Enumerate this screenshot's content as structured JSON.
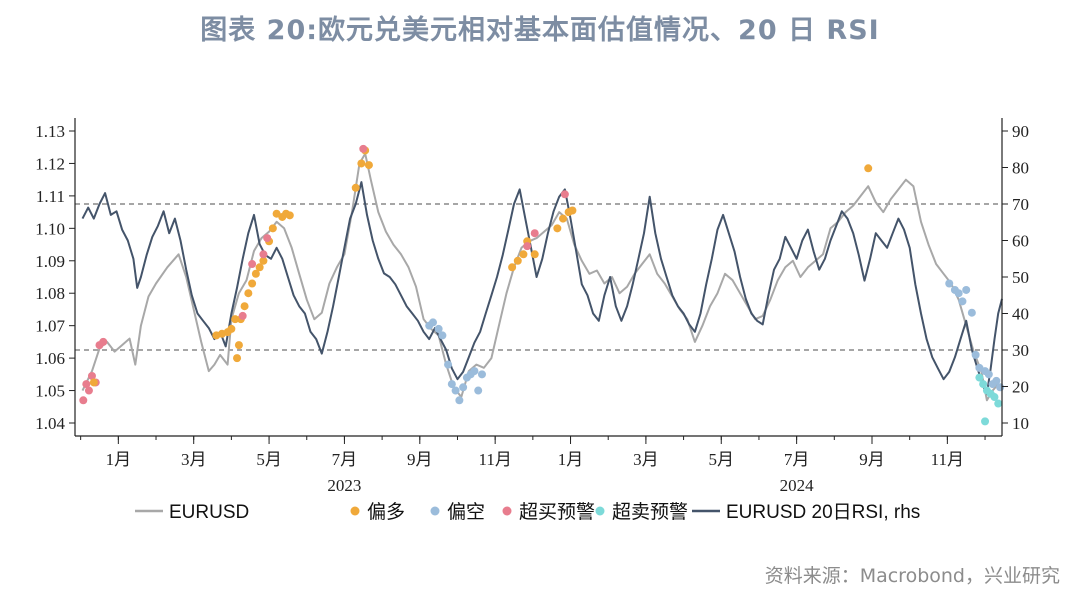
{
  "title": "图表 20:欧元兑美元相对基本面估值情况、20 日 RSI",
  "source": "资料来源：Macrobond，兴业研究",
  "chart_data": {
    "type": "line",
    "colors": {
      "eurusd": "#a8a8a8",
      "rsi": "#44546a",
      "bull": "#f0a93a",
      "bear": "#9bbcdb",
      "ob": "#e87d8e",
      "os": "#7ddad9",
      "ref": "#888888"
    },
    "legend": [
      {
        "key": "eurusd",
        "label": "EURUSD"
      },
      {
        "key": "bull",
        "label": "偏多"
      },
      {
        "key": "bear",
        "label": "偏空"
      },
      {
        "key": "ob",
        "label": "超买预警"
      },
      {
        "key": "os",
        "label": "超卖预警"
      },
      {
        "key": "rsi",
        "label": "EURUSD 20日RSI, rhs"
      }
    ],
    "x_tick_labels": [
      "1月",
      "3月",
      "5月",
      "7月",
      "9月",
      "11月",
      "1月",
      "3月",
      "5月",
      "7月",
      "9月",
      "11月"
    ],
    "x_tick_months": [
      1,
      3,
      5,
      7,
      9,
      11,
      13,
      15,
      17,
      19,
      21,
      23
    ],
    "year_labels": [
      {
        "label": "2023",
        "month": 7
      },
      {
        "label": "2024",
        "month": 19
      }
    ],
    "x_range_months": [
      -0.15,
      24.45
    ],
    "left_axis": {
      "ylim": [
        1.04,
        1.13
      ],
      "ticks": [
        "1.04",
        "1.05",
        "1.06",
        "1.07",
        "1.08",
        "1.09",
        "1.10",
        "1.11",
        "1.12",
        "1.13"
      ]
    },
    "right_axis": {
      "ylim": [
        10,
        90
      ],
      "ticks": [
        "10",
        "20",
        "30",
        "40",
        "50",
        "60",
        "70",
        "80",
        "90"
      ]
    },
    "reference_lines_rhs": [
      30,
      70
    ],
    "eurusd_series": [
      [
        0.05,
        1.05
      ],
      [
        0.3,
        1.056
      ],
      [
        0.5,
        1.063
      ],
      [
        0.7,
        1.065
      ],
      [
        0.9,
        1.062
      ],
      [
        1.1,
        1.064
      ],
      [
        1.3,
        1.066
      ],
      [
        1.45,
        1.058
      ],
      [
        1.6,
        1.07
      ],
      [
        1.8,
        1.079
      ],
      [
        2.0,
        1.083
      ],
      [
        2.3,
        1.088
      ],
      [
        2.6,
        1.092
      ],
      [
        2.8,
        1.085
      ],
      [
        3.0,
        1.075
      ],
      [
        3.2,
        1.065
      ],
      [
        3.4,
        1.056
      ],
      [
        3.55,
        1.058
      ],
      [
        3.7,
        1.061
      ],
      [
        3.9,
        1.058
      ],
      [
        4.0,
        1.072
      ],
      [
        4.2,
        1.08
      ],
      [
        4.4,
        1.084
      ],
      [
        4.6,
        1.093
      ],
      [
        4.8,
        1.097
      ],
      [
        5.0,
        1.099
      ],
      [
        5.2,
        1.102
      ],
      [
        5.4,
        1.1
      ],
      [
        5.6,
        1.094
      ],
      [
        5.8,
        1.086
      ],
      [
        6.0,
        1.078
      ],
      [
        6.2,
        1.072
      ],
      [
        6.4,
        1.074
      ],
      [
        6.6,
        1.083
      ],
      [
        6.8,
        1.088
      ],
      [
        7.0,
        1.092
      ],
      [
        7.2,
        1.105
      ],
      [
        7.4,
        1.12
      ],
      [
        7.55,
        1.123
      ],
      [
        7.7,
        1.115
      ],
      [
        7.9,
        1.105
      ],
      [
        8.1,
        1.099
      ],
      [
        8.3,
        1.095
      ],
      [
        8.5,
        1.092
      ],
      [
        8.7,
        1.088
      ],
      [
        8.9,
        1.082
      ],
      [
        9.1,
        1.072
      ],
      [
        9.3,
        1.069
      ],
      [
        9.5,
        1.067
      ],
      [
        9.7,
        1.058
      ],
      [
        9.9,
        1.051
      ],
      [
        10.1,
        1.048
      ],
      [
        10.3,
        1.056
      ],
      [
        10.5,
        1.058
      ],
      [
        10.7,
        1.057
      ],
      [
        10.9,
        1.06
      ],
      [
        11.1,
        1.07
      ],
      [
        11.3,
        1.08
      ],
      [
        11.5,
        1.088
      ],
      [
        11.7,
        1.094
      ],
      [
        11.9,
        1.096
      ],
      [
        12.1,
        1.097
      ],
      [
        12.3,
        1.099
      ],
      [
        12.5,
        1.101
      ],
      [
        12.7,
        1.105
      ],
      [
        12.9,
        1.103
      ],
      [
        13.1,
        1.095
      ],
      [
        13.3,
        1.09
      ],
      [
        13.5,
        1.086
      ],
      [
        13.7,
        1.087
      ],
      [
        13.9,
        1.083
      ],
      [
        14.1,
        1.085
      ],
      [
        14.3,
        1.08
      ],
      [
        14.5,
        1.082
      ],
      [
        14.7,
        1.086
      ],
      [
        14.9,
        1.089
      ],
      [
        15.1,
        1.092
      ],
      [
        15.3,
        1.086
      ],
      [
        15.5,
        1.083
      ],
      [
        15.7,
        1.079
      ],
      [
        15.9,
        1.075
      ],
      [
        16.1,
        1.072
      ],
      [
        16.3,
        1.065
      ],
      [
        16.5,
        1.07
      ],
      [
        16.7,
        1.076
      ],
      [
        16.9,
        1.08
      ],
      [
        17.1,
        1.086
      ],
      [
        17.3,
        1.084
      ],
      [
        17.5,
        1.08
      ],
      [
        17.7,
        1.076
      ],
      [
        17.9,
        1.072
      ],
      [
        18.1,
        1.073
      ],
      [
        18.3,
        1.078
      ],
      [
        18.5,
        1.084
      ],
      [
        18.7,
        1.088
      ],
      [
        18.9,
        1.09
      ],
      [
        19.1,
        1.085
      ],
      [
        19.3,
        1.088
      ],
      [
        19.5,
        1.09
      ],
      [
        19.7,
        1.092
      ],
      [
        19.9,
        1.1
      ],
      [
        20.1,
        1.102
      ],
      [
        20.3,
        1.105
      ],
      [
        20.5,
        1.107
      ],
      [
        20.7,
        1.11
      ],
      [
        20.9,
        1.113
      ],
      [
        21.1,
        1.108
      ],
      [
        21.3,
        1.105
      ],
      [
        21.5,
        1.109
      ],
      [
        21.7,
        1.112
      ],
      [
        21.9,
        1.115
      ],
      [
        22.1,
        1.113
      ],
      [
        22.3,
        1.102
      ],
      [
        22.5,
        1.095
      ],
      [
        22.7,
        1.089
      ],
      [
        22.9,
        1.086
      ],
      [
        23.1,
        1.083
      ],
      [
        23.3,
        1.078
      ],
      [
        23.5,
        1.07
      ],
      [
        23.7,
        1.062
      ],
      [
        23.9,
        1.056
      ],
      [
        24.05,
        1.047
      ],
      [
        24.2,
        1.05
      ],
      [
        24.35,
        1.052
      ]
    ],
    "rsi_series": [
      [
        0.05,
        66
      ],
      [
        0.2,
        69
      ],
      [
        0.35,
        66
      ],
      [
        0.5,
        70
      ],
      [
        0.65,
        73
      ],
      [
        0.8,
        67
      ],
      [
        0.95,
        68
      ],
      [
        1.1,
        63
      ],
      [
        1.25,
        60
      ],
      [
        1.4,
        55
      ],
      [
        1.5,
        47
      ],
      [
        1.6,
        50
      ],
      [
        1.75,
        56
      ],
      [
        1.9,
        61
      ],
      [
        2.05,
        64
      ],
      [
        2.2,
        68
      ],
      [
        2.35,
        62
      ],
      [
        2.5,
        66
      ],
      [
        2.65,
        60
      ],
      [
        2.8,
        52
      ],
      [
        2.95,
        45
      ],
      [
        3.1,
        40
      ],
      [
        3.25,
        38
      ],
      [
        3.4,
        36
      ],
      [
        3.55,
        33
      ],
      [
        3.7,
        35
      ],
      [
        3.85,
        31
      ],
      [
        4.0,
        40
      ],
      [
        4.15,
        47
      ],
      [
        4.3,
        55
      ],
      [
        4.45,
        62
      ],
      [
        4.6,
        67
      ],
      [
        4.75,
        59
      ],
      [
        4.9,
        56
      ],
      [
        5.05,
        55
      ],
      [
        5.2,
        58
      ],
      [
        5.35,
        55
      ],
      [
        5.5,
        50
      ],
      [
        5.65,
        45
      ],
      [
        5.8,
        42
      ],
      [
        5.95,
        40
      ],
      [
        6.1,
        35
      ],
      [
        6.25,
        33
      ],
      [
        6.4,
        29
      ],
      [
        6.55,
        35
      ],
      [
        6.7,
        42
      ],
      [
        6.85,
        50
      ],
      [
        7.0,
        58
      ],
      [
        7.15,
        66
      ],
      [
        7.3,
        70
      ],
      [
        7.45,
        76
      ],
      [
        7.6,
        67
      ],
      [
        7.75,
        60
      ],
      [
        7.9,
        55
      ],
      [
        8.05,
        51
      ],
      [
        8.2,
        50
      ],
      [
        8.35,
        48
      ],
      [
        8.5,
        45
      ],
      [
        8.65,
        42
      ],
      [
        8.8,
        40
      ],
      [
        8.95,
        38
      ],
      [
        9.1,
        35
      ],
      [
        9.25,
        33
      ],
      [
        9.4,
        36
      ],
      [
        9.55,
        33
      ],
      [
        9.7,
        30
      ],
      [
        9.85,
        25
      ],
      [
        10.0,
        22
      ],
      [
        10.15,
        24
      ],
      [
        10.3,
        28
      ],
      [
        10.45,
        32
      ],
      [
        10.6,
        35
      ],
      [
        10.75,
        40
      ],
      [
        10.9,
        45
      ],
      [
        11.05,
        50
      ],
      [
        11.2,
        56
      ],
      [
        11.35,
        63
      ],
      [
        11.5,
        70
      ],
      [
        11.65,
        74
      ],
      [
        11.8,
        66
      ],
      [
        11.95,
        58
      ],
      [
        12.1,
        50
      ],
      [
        12.25,
        55
      ],
      [
        12.4,
        62
      ],
      [
        12.55,
        68
      ],
      [
        12.7,
        72
      ],
      [
        12.85,
        74
      ],
      [
        13.0,
        66
      ],
      [
        13.15,
        57
      ],
      [
        13.3,
        48
      ],
      [
        13.45,
        45
      ],
      [
        13.6,
        40
      ],
      [
        13.75,
        38
      ],
      [
        13.9,
        45
      ],
      [
        14.05,
        50
      ],
      [
        14.2,
        42
      ],
      [
        14.35,
        38
      ],
      [
        14.5,
        42
      ],
      [
        14.65,
        48
      ],
      [
        14.8,
        55
      ],
      [
        14.95,
        62
      ],
      [
        15.1,
        72
      ],
      [
        15.25,
        62
      ],
      [
        15.4,
        55
      ],
      [
        15.55,
        50
      ],
      [
        15.7,
        45
      ],
      [
        15.85,
        42
      ],
      [
        16.0,
        40
      ],
      [
        16.15,
        37
      ],
      [
        16.3,
        35
      ],
      [
        16.45,
        40
      ],
      [
        16.6,
        48
      ],
      [
        16.75,
        55
      ],
      [
        16.9,
        63
      ],
      [
        17.05,
        67
      ],
      [
        17.2,
        62
      ],
      [
        17.35,
        57
      ],
      [
        17.5,
        50
      ],
      [
        17.65,
        44
      ],
      [
        17.8,
        40
      ],
      [
        17.95,
        38
      ],
      [
        18.1,
        37
      ],
      [
        18.25,
        45
      ],
      [
        18.4,
        52
      ],
      [
        18.55,
        55
      ],
      [
        18.7,
        61
      ],
      [
        18.85,
        58
      ],
      [
        19.0,
        55
      ],
      [
        19.15,
        60
      ],
      [
        19.3,
        63
      ],
      [
        19.45,
        57
      ],
      [
        19.6,
        52
      ],
      [
        19.75,
        55
      ],
      [
        19.9,
        60
      ],
      [
        20.05,
        64
      ],
      [
        20.2,
        68
      ],
      [
        20.35,
        66
      ],
      [
        20.5,
        62
      ],
      [
        20.65,
        56
      ],
      [
        20.8,
        49
      ],
      [
        20.95,
        55
      ],
      [
        21.1,
        62
      ],
      [
        21.25,
        60
      ],
      [
        21.4,
        58
      ],
      [
        21.55,
        62
      ],
      [
        21.7,
        66
      ],
      [
        21.85,
        63
      ],
      [
        22.0,
        58
      ],
      [
        22.15,
        48
      ],
      [
        22.3,
        40
      ],
      [
        22.45,
        33
      ],
      [
        22.6,
        28
      ],
      [
        22.75,
        25
      ],
      [
        22.9,
        22
      ],
      [
        23.05,
        24
      ],
      [
        23.2,
        28
      ],
      [
        23.35,
        33
      ],
      [
        23.5,
        38
      ],
      [
        23.65,
        30
      ],
      [
        23.8,
        25
      ],
      [
        23.95,
        20
      ],
      [
        24.05,
        18
      ],
      [
        24.15,
        25
      ],
      [
        24.25,
        33
      ],
      [
        24.35,
        40
      ],
      [
        24.45,
        44
      ]
    ],
    "signals": [
      {
        "key": "ob",
        "points": [
          [
            0.07,
            1.047
          ],
          [
            0.15,
            1.052
          ],
          [
            0.22,
            1.05
          ],
          [
            0.3,
            1.0545
          ],
          [
            0.4,
            1.0525
          ],
          [
            0.5,
            1.064
          ],
          [
            0.6,
            1.065
          ]
        ]
      },
      {
        "key": "bull",
        "points": [
          [
            0.35,
            1.0525
          ],
          [
            3.6,
            1.067
          ],
          [
            3.75,
            1.0675
          ],
          [
            3.9,
            1.068
          ],
          [
            4.0,
            1.069
          ],
          [
            4.1,
            1.072
          ],
          [
            4.25,
            1.072
          ],
          [
            4.35,
            1.076
          ],
          [
            4.45,
            1.08
          ],
          [
            4.55,
            1.083
          ],
          [
            4.65,
            1.086
          ],
          [
            4.75,
            1.088
          ],
          [
            4.85,
            1.09
          ],
          [
            5.0,
            1.096
          ],
          [
            5.1,
            1.1
          ],
          [
            5.2,
            1.1045
          ],
          [
            5.35,
            1.1035
          ],
          [
            5.45,
            1.1045
          ],
          [
            5.55,
            1.104
          ],
          [
            7.3,
            1.1125
          ],
          [
            7.45,
            1.12
          ],
          [
            7.55,
            1.124
          ],
          [
            7.65,
            1.1195
          ],
          [
            11.45,
            1.088
          ],
          [
            11.6,
            1.09
          ],
          [
            11.75,
            1.092
          ],
          [
            11.85,
            1.096
          ],
          [
            12.05,
            1.092
          ],
          [
            12.65,
            1.1
          ],
          [
            12.8,
            1.103
          ],
          [
            12.95,
            1.105
          ],
          [
            13.05,
            1.1055
          ],
          [
            20.9,
            1.1185
          ],
          [
            4.2,
            1.064
          ],
          [
            4.15,
            1.06
          ]
        ]
      },
      {
        "key": "ob",
        "points": [
          [
            4.3,
            1.073
          ],
          [
            4.55,
            1.089
          ],
          [
            4.85,
            1.092
          ],
          [
            4.95,
            1.097
          ],
          [
            7.5,
            1.1245
          ],
          [
            11.85,
            1.0945
          ],
          [
            12.05,
            1.0985
          ],
          [
            12.85,
            1.1105
          ]
        ]
      },
      {
        "key": "bear",
        "points": [
          [
            9.25,
            1.07
          ],
          [
            9.35,
            1.071
          ],
          [
            9.5,
            1.069
          ],
          [
            9.6,
            1.067
          ],
          [
            9.75,
            1.058
          ],
          [
            9.85,
            1.052
          ],
          [
            9.95,
            1.05
          ],
          [
            10.05,
            1.047
          ],
          [
            10.15,
            1.051
          ],
          [
            10.25,
            1.054
          ],
          [
            10.35,
            1.055
          ],
          [
            10.45,
            1.056
          ],
          [
            10.55,
            1.05
          ],
          [
            10.65,
            1.055
          ],
          [
            23.05,
            1.083
          ],
          [
            23.2,
            1.081
          ],
          [
            23.3,
            1.08
          ],
          [
            23.4,
            1.0775
          ],
          [
            23.5,
            1.081
          ],
          [
            23.65,
            1.074
          ],
          [
            23.75,
            1.061
          ],
          [
            23.85,
            1.057
          ],
          [
            24.0,
            1.056
          ],
          [
            24.1,
            1.055
          ],
          [
            24.2,
            1.052
          ],
          [
            24.3,
            1.053
          ],
          [
            24.4,
            1.051
          ]
        ]
      },
      {
        "key": "os",
        "points": [
          [
            23.85,
            1.054
          ],
          [
            23.95,
            1.052
          ],
          [
            24.05,
            1.05
          ],
          [
            24.15,
            1.049
          ],
          [
            24.25,
            1.048
          ],
          [
            24.0,
            1.0405
          ],
          [
            24.35,
            1.046
          ]
        ]
      }
    ]
  }
}
